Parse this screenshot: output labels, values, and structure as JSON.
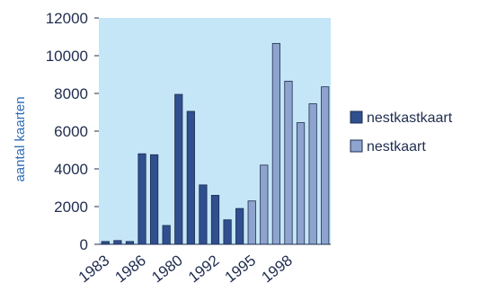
{
  "chart_data": {
    "type": "bar",
    "title": "",
    "xlabel": "",
    "ylabel": "aantal kaarten",
    "ylim": [
      0,
      12000
    ],
    "yticks": [
      0,
      2000,
      4000,
      6000,
      8000,
      10000,
      12000
    ],
    "xtick_labels": [
      "1983",
      "1986",
      "1980",
      "1992",
      "1995",
      "1998"
    ],
    "grid": false,
    "legend_position": "right",
    "plot_background": "#c5e6f7",
    "series": [
      {
        "name": "nestkastkaart",
        "color": "#2f4f8f",
        "values": [
          150,
          200,
          150,
          4800,
          4750,
          1000,
          7950,
          7050,
          3150,
          2600,
          1300,
          1900
        ]
      },
      {
        "name": "nestkaart",
        "color": "#8ea4cf",
        "values": [
          2300,
          4200,
          10650,
          8650,
          6450,
          7450,
          8350
        ]
      }
    ]
  }
}
